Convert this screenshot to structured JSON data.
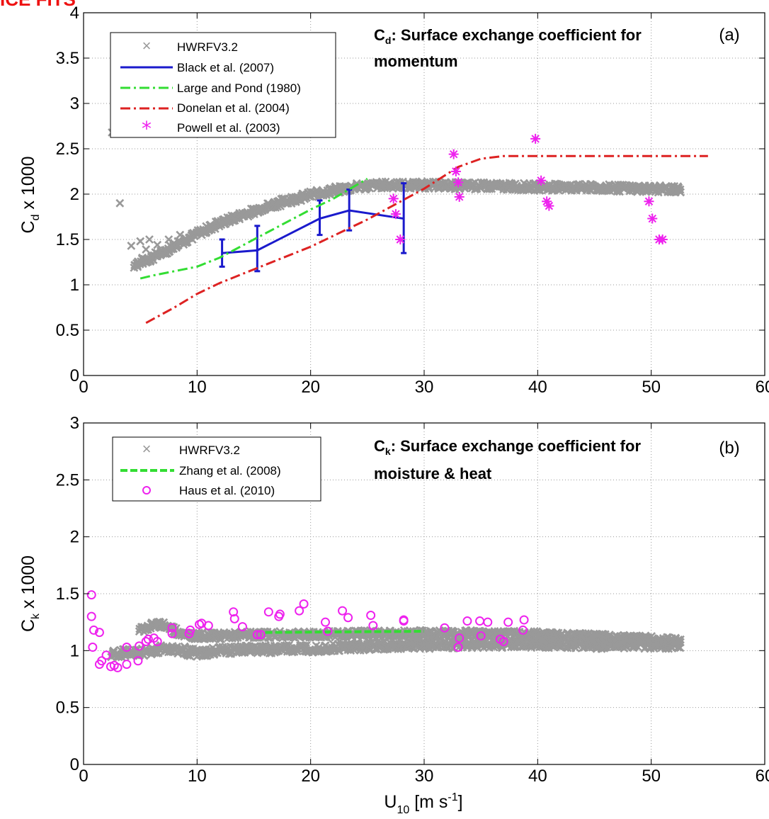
{
  "header_fragment": "ICE FITS",
  "chart_data": [
    {
      "type": "scatter",
      "panel_label": "(a)",
      "annotation": {
        "symbol": "C",
        "subscript": "d",
        "line1": ": Surface exchange coefficient for",
        "line2": "momentum"
      },
      "xlabel": {
        "text": "U",
        "sub": "10",
        "unit": " [m s",
        "sup": "-1",
        "close": "]"
      },
      "ylabel": {
        "prefix": "C",
        "sub": "d",
        "suffix": " x 1000"
      },
      "xlim": [
        0,
        60
      ],
      "ylim": [
        0,
        4
      ],
      "xticks": [
        "0",
        "10",
        "20",
        "30",
        "40",
        "50",
        "60"
      ],
      "yticks": [
        "0",
        "0.5",
        "1",
        "1.5",
        "2",
        "2.5",
        "3",
        "3.5",
        "4"
      ],
      "grid": true,
      "legend_position": "top-left",
      "series": [
        {
          "name": "HWRFV3.2",
          "kind": "scatter",
          "marker": "x",
          "color": "#999999",
          "curve": [
            [
              4.5,
              1.22
            ],
            [
              5,
              1.25
            ],
            [
              6,
              1.3
            ],
            [
              7,
              1.36
            ],
            [
              8,
              1.43
            ],
            [
              9,
              1.5
            ],
            [
              10,
              1.56
            ],
            [
              11,
              1.62
            ],
            [
              12,
              1.68
            ],
            [
              14,
              1.77
            ],
            [
              16,
              1.86
            ],
            [
              18,
              1.93
            ],
            [
              20,
              1.99
            ],
            [
              22,
              2.04
            ],
            [
              24,
              2.08
            ],
            [
              26,
              2.1
            ],
            [
              28,
              2.1
            ],
            [
              30,
              2.1
            ],
            [
              35,
              2.09
            ],
            [
              40,
              2.08
            ],
            [
              45,
              2.07
            ],
            [
              50,
              2.06
            ],
            [
              52.5,
              2.05
            ]
          ],
          "outliers": [
            [
              2.5,
              2.68
            ],
            [
              3.2,
              1.9
            ],
            [
              4.2,
              1.43
            ],
            [
              5,
              1.48
            ],
            [
              5.5,
              1.39
            ],
            [
              5.8,
              1.5
            ],
            [
              6.5,
              1.44
            ],
            [
              7.5,
              1.5
            ],
            [
              8.5,
              1.55
            ],
            [
              9,
              1.47
            ]
          ]
        },
        {
          "name": "Black et al. (2007)",
          "kind": "line_errorbar",
          "color": "#1a1acc",
          "x": [
            12.2,
            15.3,
            20.8,
            23.4,
            28.2
          ],
          "y": [
            1.35,
            1.38,
            1.73,
            1.82,
            1.73
          ],
          "err_low": [
            1.2,
            1.15,
            1.55,
            1.6,
            1.35
          ],
          "err_high": [
            1.5,
            1.65,
            1.93,
            2.05,
            2.12
          ]
        },
        {
          "name": "Large and Pond (1980)",
          "kind": "line",
          "dash": "dash-dot",
          "color": "#33dd33",
          "x": [
            5,
            6,
            8,
            10,
            11,
            12,
            15,
            20,
            22,
            25
          ],
          "y": [
            1.07,
            1.1,
            1.15,
            1.2,
            1.25,
            1.3,
            1.5,
            1.83,
            1.95,
            2.17
          ]
        },
        {
          "name": "Donelan et al. (2004)",
          "kind": "line",
          "dash": "dash-dot",
          "color": "#dd2222",
          "x": [
            5.5,
            8,
            10,
            12,
            15,
            20,
            25,
            30,
            33,
            35,
            37,
            40,
            45,
            50,
            55
          ],
          "y": [
            0.58,
            0.75,
            0.9,
            1.02,
            1.17,
            1.42,
            1.72,
            2.06,
            2.3,
            2.39,
            2.42,
            2.42,
            2.42,
            2.42,
            2.42
          ]
        },
        {
          "name": "Powell et al. (2003)",
          "kind": "scatter",
          "marker": "asterisk",
          "color": "#ee22ee",
          "x": [
            27.3,
            27.5,
            27.9,
            32.6,
            32.8,
            33.0,
            33.1,
            39.8,
            40.3,
            40.8,
            41.0,
            49.8,
            50.1,
            50.7,
            51.0
          ],
          "y": [
            1.95,
            1.78,
            1.5,
            2.44,
            2.25,
            2.13,
            1.97,
            2.61,
            2.15,
            1.92,
            1.87,
            1.92,
            1.73,
            1.5,
            1.5
          ]
        }
      ]
    },
    {
      "type": "scatter",
      "panel_label": "(b)",
      "annotation": {
        "symbol": "C",
        "subscript": "k",
        "line1": ": Surface exchange coefficient for",
        "line2": "moisture & heat"
      },
      "xlabel": {
        "text": "U",
        "sub": "10",
        "unit": " [m s",
        "sup": "-1",
        "close": "]"
      },
      "ylabel": {
        "prefix": "C",
        "sub": "k",
        "suffix": " x 1000"
      },
      "xlim": [
        0,
        60
      ],
      "ylim": [
        0,
        3
      ],
      "xticks": [
        "0",
        "10",
        "20",
        "30",
        "40",
        "50",
        "60"
      ],
      "yticks": [
        "0",
        "0.5",
        "1",
        "1.5",
        "2",
        "2.5",
        "3"
      ],
      "grid": true,
      "legend_position": "top-left",
      "series": [
        {
          "name": "HWRFV3.2",
          "kind": "scatter",
          "marker": "x",
          "color": "#999999",
          "curve": [
            [
              5,
              1.18
            ],
            [
              6,
              1.22
            ],
            [
              7,
              1.23
            ],
            [
              8,
              1.18
            ],
            [
              9,
              1.14
            ],
            [
              10,
              1.13
            ],
            [
              12,
              1.13
            ],
            [
              15,
              1.14
            ],
            [
              20,
              1.14
            ],
            [
              25,
              1.15
            ],
            [
              30,
              1.15
            ],
            [
              35,
              1.15
            ],
            [
              40,
              1.14
            ],
            [
              45,
              1.12
            ],
            [
              50,
              1.1
            ],
            [
              52.5,
              1.08
            ]
          ],
          "lower": [
            [
              2.5,
              0.97
            ],
            [
              4,
              0.98
            ],
            [
              5,
              0.98
            ],
            [
              7,
              1.02
            ],
            [
              9,
              1.0
            ],
            [
              10,
              0.97
            ],
            [
              12,
              1.0
            ],
            [
              15,
              1.01
            ],
            [
              20,
              1.02
            ],
            [
              25,
              1.04
            ],
            [
              30,
              1.05
            ],
            [
              35,
              1.06
            ],
            [
              40,
              1.06
            ],
            [
              45,
              1.05
            ],
            [
              50,
              1.05
            ],
            [
              52.5,
              1.05
            ]
          ]
        },
        {
          "name": "Zhang et al. (2008)",
          "kind": "line",
          "dash": "dashed",
          "color": "#33dd33",
          "x": [
            16,
            30
          ],
          "y": [
            1.16,
            1.17
          ]
        },
        {
          "name": "Haus et al. (2010)",
          "kind": "scatter",
          "marker": "circle",
          "color": "#ee22ee",
          "x": [
            0.7,
            0.7,
            0.8,
            0.9,
            1.4,
            1.4,
            1.6,
            2.0,
            2.4,
            2.7,
            3.0,
            3.8,
            3.8,
            4.8,
            4.9,
            5.5,
            5.7,
            6.2,
            6.5,
            7.8,
            7.8,
            9.3,
            9.4,
            10.2,
            10.4,
            11.0,
            13.2,
            13.3,
            14.0,
            15.3,
            15.6,
            16.3,
            17.2,
            17.3,
            19.0,
            19.4,
            21.3,
            21.5,
            22.8,
            23.3,
            25.3,
            25.5,
            28.2,
            28.2,
            31.8,
            33.0,
            33.1,
            33.8,
            34.9,
            35.0,
            35.6,
            36.7,
            37.0,
            37.4,
            38.7,
            38.8
          ],
          "y": [
            1.49,
            1.3,
            1.03,
            1.18,
            1.16,
            0.88,
            0.91,
            0.96,
            0.86,
            0.87,
            0.85,
            0.88,
            1.03,
            0.91,
            1.04,
            1.08,
            1.1,
            1.11,
            1.08,
            1.2,
            1.15,
            1.15,
            1.18,
            1.23,
            1.24,
            1.22,
            1.34,
            1.28,
            1.21,
            1.14,
            1.14,
            1.34,
            1.3,
            1.32,
            1.35,
            1.41,
            1.25,
            1.17,
            1.35,
            1.29,
            1.31,
            1.22,
            1.26,
            1.27,
            1.2,
            1.03,
            1.11,
            1.26,
            1.26,
            1.13,
            1.25,
            1.1,
            1.08,
            1.25,
            1.18,
            1.27
          ]
        }
      ]
    }
  ]
}
